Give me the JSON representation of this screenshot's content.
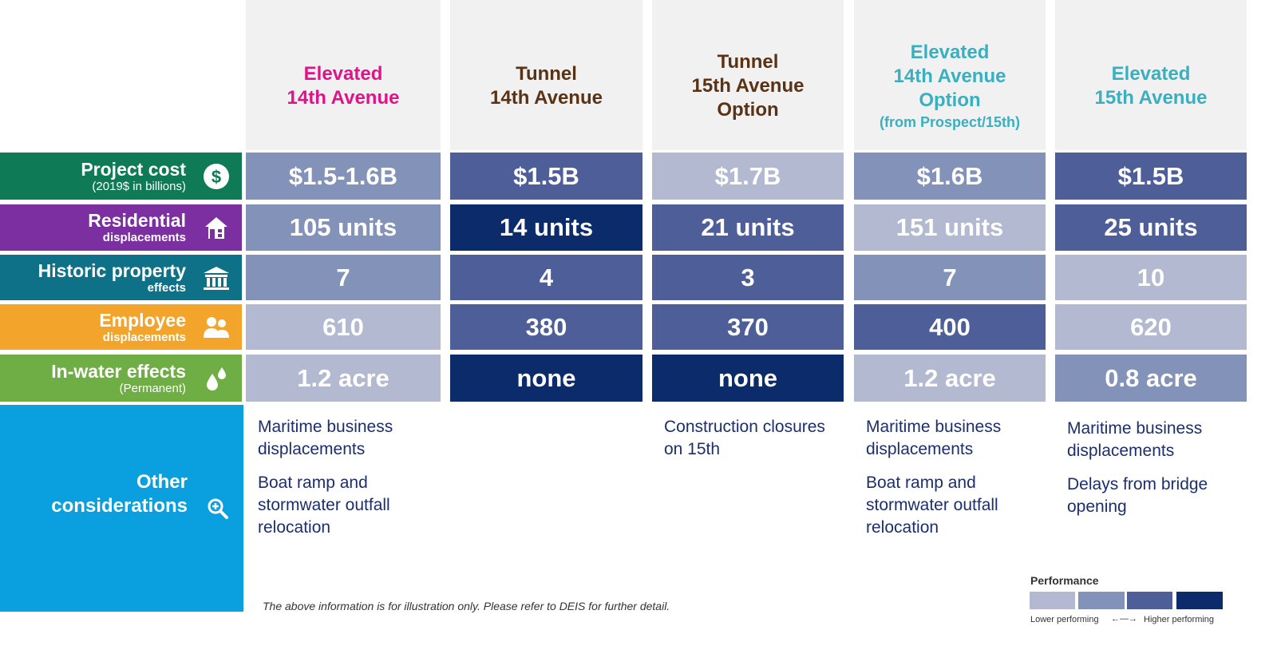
{
  "colors": {
    "lower": "#b2b9d0",
    "medium_low": "#8392b8",
    "medium_high": "#4e5e98",
    "higher": "#0c2b6b",
    "header_bg": "#f1f1f1"
  },
  "columns": [
    {
      "lines": [
        "Elevated",
        "14th Avenue"
      ],
      "sub": "",
      "color": "#e0148a"
    },
    {
      "lines": [
        "Tunnel",
        "14th Avenue"
      ],
      "sub": "",
      "color": "#5a3214"
    },
    {
      "lines": [
        "Tunnel",
        "15th Avenue",
        "Option"
      ],
      "sub": "",
      "color": "#5a3214"
    },
    {
      "lines": [
        "Elevated",
        "14th Avenue",
        "Option"
      ],
      "sub": "(from Prospect/15th)",
      "color": "#3aafbf"
    },
    {
      "lines": [
        "Elevated",
        "15th Avenue"
      ],
      "sub": "",
      "color": "#3aafbf"
    }
  ],
  "rows": [
    {
      "label": "Project cost",
      "sub": "(2019$ in billions)",
      "sub_bold": false,
      "icon": "dollar-icon",
      "color": "#0e7a56",
      "values": [
        "$1.5-1.6B",
        "$1.5B",
        "$1.7B",
        "$1.6B",
        "$1.5B"
      ],
      "levels": [
        "medium_low",
        "medium_high",
        "lower",
        "medium_low",
        "medium_high"
      ]
    },
    {
      "label": "Residential",
      "sub": "displacements",
      "sub_bold": true,
      "icon": "house-icon",
      "color": "#7b2fa1",
      "values": [
        "105 units",
        "14 units",
        "21 units",
        "151 units",
        "25 units"
      ],
      "levels": [
        "medium_low",
        "higher",
        "medium_high",
        "lower",
        "medium_high"
      ]
    },
    {
      "label": "Historic property",
      "sub": "effects",
      "sub_bold": true,
      "icon": "building-icon",
      "color": "#0f7188",
      "values": [
        "7",
        "4",
        "3",
        "7",
        "10"
      ],
      "levels": [
        "medium_low",
        "medium_high",
        "medium_high",
        "medium_low",
        "lower"
      ]
    },
    {
      "label": "Employee",
      "sub": "displacements",
      "sub_bold": true,
      "icon": "people-icon",
      "color": "#f3a42a",
      "values": [
        "610",
        "380",
        "370",
        "400",
        "620"
      ],
      "levels": [
        "lower",
        "medium_high",
        "medium_high",
        "medium_high",
        "lower"
      ]
    },
    {
      "label": "In-water effects",
      "sub": "(Permanent)",
      "sub_bold": false,
      "icon": "water-drops-icon",
      "color": "#6fae44",
      "values": [
        "1.2 acre",
        "none",
        "none",
        "1.2 acre",
        "0.8 acre"
      ],
      "levels": [
        "lower",
        "higher",
        "higher",
        "lower",
        "medium_low"
      ]
    }
  ],
  "other": {
    "label_line1": "Other",
    "label_line2": "considerations",
    "icon": "magnifier-plus-icon",
    "color": "#0aa0e0",
    "columns": [
      [
        "Maritime business displacements",
        "Boat ramp and stormwater outfall relocation"
      ],
      [],
      [
        "Construction closures on 15th"
      ],
      [
        "Maritime business displacements",
        "Boat ramp and stormwater outfall relocation"
      ],
      [
        "Maritime business displacements",
        "Delays from bridge opening"
      ]
    ]
  },
  "note": "The above information is for illustration only. Please refer to DEIS for further detail.",
  "legend": {
    "title": "Performance",
    "lower_label": "Lower performing",
    "arrow": "←—→",
    "higher_label": "Higher performing"
  }
}
